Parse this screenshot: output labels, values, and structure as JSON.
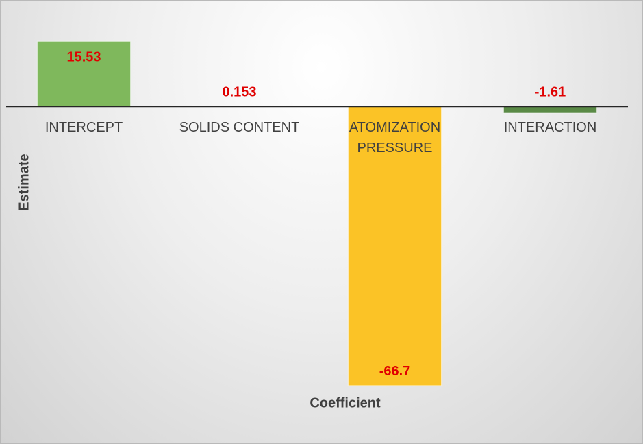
{
  "chart_data": {
    "type": "bar",
    "x_label": "Coefficient",
    "y_label": "Estimate",
    "categories": [
      "INTERCEPT",
      "SOLIDS CONTENT",
      "ATOMIZATION PRESSURE",
      "INTERACTION"
    ],
    "values": [
      15.53,
      0.153,
      -66.7,
      -1.61
    ],
    "colors": [
      "#7fb85c",
      "#7fb85c",
      "#fbc326",
      "#5a8a46"
    ],
    "label_color": "#e00000",
    "ylim": [
      -70,
      20
    ]
  }
}
